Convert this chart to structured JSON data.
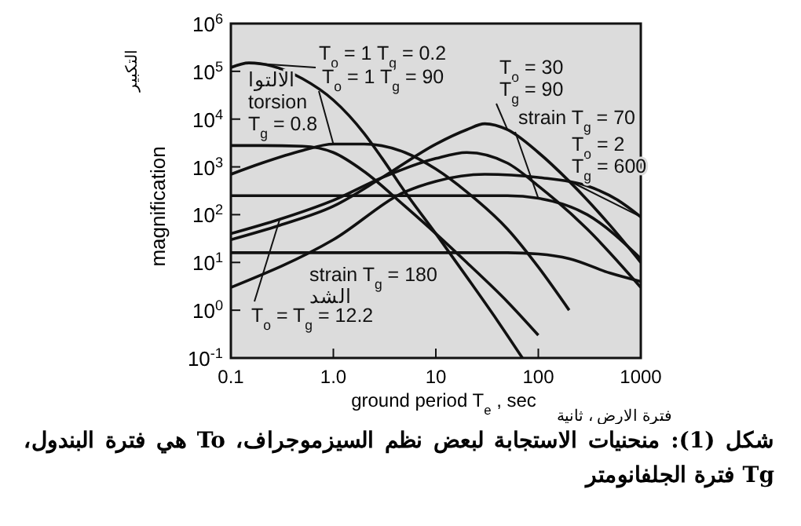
{
  "chart_data": {
    "type": "line",
    "xlabel": "ground period T$_{e}$ , sec",
    "ylabel": "magnification",
    "log": "xy",
    "grid": false,
    "legend": "top",
    "line_style": "solid",
    "xlim": [
      0.1,
      1000
    ],
    "xticks": [
      0.1,
      {
        "value": 1,
        "label": "1.0"
      },
      10,
      100,
      1000
    ],
    "ylim": [
      0.1,
      1000000
    ],
    "yticks": [
      {
        "value": 0.1,
        "label": "10$^{-1}$"
      },
      {
        "value": 1,
        "label": "10$^{0}$"
      },
      {
        "value": 10,
        "label": "10$^{1}$"
      },
      {
        "value": 100,
        "label": "10$^{2}$"
      },
      {
        "value": 1000,
        "label": "10$^{3}$"
      },
      {
        "value": 10000,
        "label": "10$^{4}$"
      },
      {
        "value": 100000,
        "label": "10$^{5}$"
      },
      {
        "value": 1000000,
        "label": "10$^{6}$"
      }
    ],
    "series": [
      {
        "name": "T$_{o}$ = 1 T$_{g}$ = 0.2",
        "color": "#111111",
        "x": [
          0.1,
          0.15,
          0.25,
          0.5,
          1,
          2,
          3,
          5,
          10,
          20,
          40,
          70
        ],
        "values": [
          120000,
          150000,
          130000,
          70000,
          25000,
          5000,
          1500,
          300,
          40,
          5,
          0.6,
          0.1
        ]
      },
      {
        "name": "T$_{o}$ = 1 T$_{g}$ = 90",
        "color": "#111111",
        "x": [
          0.1,
          0.2,
          0.5,
          1,
          2,
          5,
          10,
          20,
          50,
          100,
          200
        ],
        "values": [
          700,
          1200,
          2200,
          3000,
          3000,
          2000,
          900,
          300,
          50,
          8,
          1
        ]
      },
      {
        "name": "الالتوا\ntorsion\nT$_{g}$ = 0.8",
        "color": "#111111",
        "x": [
          0.1,
          0.2,
          0.5,
          1,
          2,
          5,
          10,
          20,
          50,
          100
        ],
        "values": [
          2800,
          2800,
          2700,
          2000,
          800,
          150,
          40,
          10,
          1.5,
          0.3
        ]
      },
      {
        "name": "T$_{o}$ = 30\nT$_{g}$ = 90",
        "color": "#111111",
        "x": [
          0.1,
          0.3,
          1,
          3,
          10,
          20,
          30,
          50,
          100,
          200,
          500,
          1000
        ],
        "values": [
          30,
          60,
          150,
          600,
          3000,
          6000,
          8000,
          6000,
          2000,
          500,
          60,
          10
        ]
      },
      {
        "name": "strain T$_{g}$ = 70",
        "color": "#111111",
        "x": [
          0.1,
          1,
          10,
          50,
          100,
          300,
          1000
        ],
        "values": [
          250,
          250,
          250,
          250,
          220,
          100,
          12
        ]
      },
      {
        "name": "T$_{o}$ = 2\nT$_{g}$ = 600",
        "color": "#111111",
        "x": [
          0.1,
          1,
          5,
          10,
          30,
          100,
          300,
          600,
          1000
        ],
        "values": [
          3,
          30,
          300,
          500,
          700,
          600,
          400,
          200,
          90
        ]
      },
      {
        "name": "strain T$_{g}$ = 180\nالشد",
        "color": "#111111",
        "x": [
          0.1,
          1,
          10,
          50,
          100,
          200,
          500,
          1000
        ],
        "values": [
          16,
          16,
          16,
          16,
          15,
          12,
          6,
          4
        ]
      },
      {
        "name": "T$_{o}$ = T$_{g}$ = 12.2",
        "color": "#111111",
        "x": [
          0.1,
          0.3,
          1,
          3,
          10,
          20,
          50,
          100,
          300,
          1000
        ],
        "values": [
          40,
          80,
          200,
          600,
          1500,
          2000,
          1200,
          400,
          50,
          3
        ]
      }
    ],
    "annotations": [
      "التكبير",
      "فترة الارض ، ثانية",
      "شكل (1): منحنيات الاستجابة لبعض نظم السيزموجراف، To هي فترة البندول، Tg فترة الجلفانومتر"
    ]
  }
}
